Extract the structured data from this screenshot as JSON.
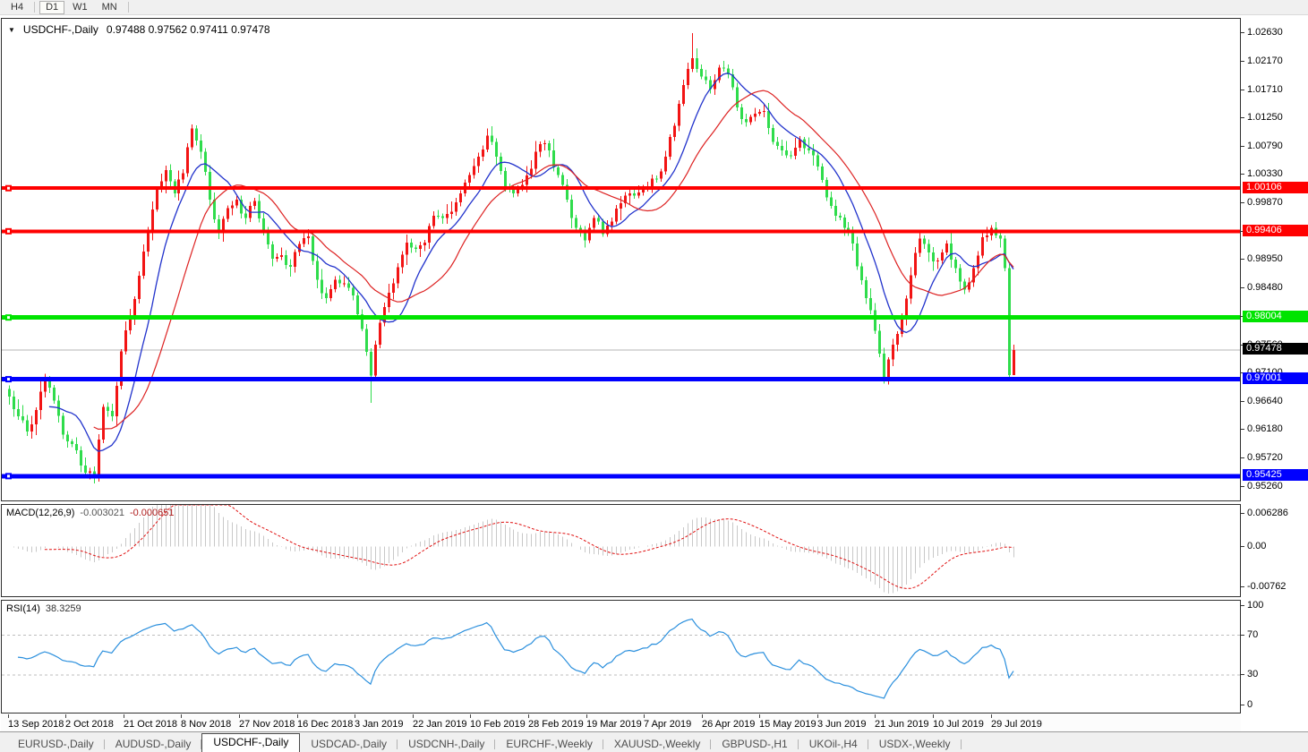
{
  "toolbar": {
    "periods": [
      {
        "label": "H4",
        "active": false
      },
      {
        "label": "D1",
        "active": true
      },
      {
        "label": "W1",
        "active": false
      },
      {
        "label": "MN",
        "active": false
      }
    ]
  },
  "chart": {
    "title": {
      "symbol": "USDCHF-,Daily",
      "ohlc": "0.97488 0.97562 0.97411 0.97478"
    }
  },
  "price_axis": {
    "ticks": [
      "1.02630",
      "1.02170",
      "1.01710",
      "1.01250",
      "1.00790",
      "1.00330",
      "0.99870",
      "0.99410",
      "0.98950",
      "0.98480",
      "0.98020",
      "0.97560",
      "0.97100",
      "0.96640",
      "0.96180",
      "0.95720",
      "0.95260"
    ],
    "badges": [
      {
        "text": "1.00106",
        "bg": "#ff0000",
        "price": 1.00106
      },
      {
        "text": "0.99406",
        "bg": "#ff0000",
        "price": 0.99406
      },
      {
        "text": "0.98004",
        "bg": "#00e400",
        "price": 0.98004
      },
      {
        "text": "0.97478",
        "bg": "#000000",
        "price": 0.97478
      },
      {
        "text": "0.97001",
        "bg": "#0000ff",
        "price": 0.97001
      },
      {
        "text": "0.95425",
        "bg": "#0000ff",
        "price": 0.95425
      }
    ]
  },
  "macd_panel": {
    "name": "MACD(12,26,9)",
    "value_main": "-0.003021",
    "value_signal": "-0.000651",
    "axis": [
      "0.006286",
      "0.00",
      "-0.00762"
    ]
  },
  "rsi_panel": {
    "name": "RSI(14)",
    "value": "38.3259",
    "axis": [
      "100",
      "70",
      "30",
      "0"
    ]
  },
  "date_axis": {
    "labels": [
      "13 Sep 2018",
      "2 Oct 2018",
      "21 Oct 2018",
      "8 Nov 2018",
      "27 Nov 2018",
      "16 Dec 2018",
      "3 Jan 2019",
      "22 Jan 2019",
      "10 Feb 2019",
      "28 Feb 2019",
      "19 Mar 2019",
      "7 Apr 2019",
      "26 Apr 2019",
      "15 May 2019",
      "3 Jun 2019",
      "21 Jun 2019",
      "10 Jul 2019",
      "29 Jul 2019"
    ]
  },
  "tabs": [
    {
      "label": "EURUSD-,Daily",
      "active": false
    },
    {
      "label": "AUDUSD-,Daily",
      "active": false
    },
    {
      "label": "USDCHF-,Daily",
      "active": true
    },
    {
      "label": "USDCAD-,Daily",
      "active": false
    },
    {
      "label": "USDCNH-,Daily",
      "active": false
    },
    {
      "label": "EURCHF-,Weekly",
      "active": false
    },
    {
      "label": "XAUUSD-,Weekly",
      "active": false
    },
    {
      "label": "GBPUSD-,H1",
      "active": false
    },
    {
      "label": "UKOil-,H4",
      "active": false
    },
    {
      "label": "USDX-,Weekly",
      "active": false
    }
  ],
  "chart_data": {
    "type": "candlestick",
    "symbol": "USDCHF",
    "timeframe": "Daily",
    "last_bar": {
      "open": 0.97488,
      "high": 0.97562,
      "low": 0.97411,
      "close": 0.97478
    },
    "visible_bars": 226,
    "ylim": [
      0.9503,
      1.0286
    ],
    "colors": {
      "bull": "#f21414",
      "bear": "#2fdc4c",
      "ma_fast": "#2233cc",
      "ma_slow": "#dd2222",
      "macd_hist": "#c8c8c8",
      "macd_signal": "#e01010",
      "rsi_line": "#2a8fdd",
      "level_dash": "#bdbdbd",
      "current_price_line": "#b4b4b4"
    },
    "hlines": [
      {
        "price": 1.00106,
        "color": "#ff0000",
        "thickness": 4
      },
      {
        "price": 0.99406,
        "color": "#ff0000",
        "thickness": 4
      },
      {
        "price": 0.98004,
        "color": "#00e400",
        "thickness": 5
      },
      {
        "price": 0.97001,
        "color": "#0000ff",
        "thickness": 5
      },
      {
        "price": 0.95425,
        "color": "#0000ff",
        "thickness": 5
      }
    ],
    "current_price": 0.97478,
    "close_anchors": [
      [
        0,
        0.9672
      ],
      [
        2,
        0.964
      ],
      [
        4,
        0.9615
      ],
      [
        6,
        0.965
      ],
      [
        8,
        0.97
      ],
      [
        10,
        0.9665
      ],
      [
        12,
        0.961
      ],
      [
        14,
        0.9595
      ],
      [
        16,
        0.956
      ],
      [
        19,
        0.9542
      ],
      [
        21,
        0.9655
      ],
      [
        23,
        0.964
      ],
      [
        25,
        0.9745
      ],
      [
        27,
        0.98
      ],
      [
        29,
        0.9868
      ],
      [
        31,
        0.994
      ],
      [
        33,
        1.0008
      ],
      [
        35,
        1.004
      ],
      [
        37,
        1.0002
      ],
      [
        39,
        1.0035
      ],
      [
        41,
        1.0108
      ],
      [
        43,
        1.007
      ],
      [
        45,
        0.9992
      ],
      [
        47,
        0.9938
      ],
      [
        49,
        0.9978
      ],
      [
        51,
        0.9992
      ],
      [
        53,
        0.9962
      ],
      [
        55,
        0.999
      ],
      [
        57,
        0.9942
      ],
      [
        59,
        0.9896
      ],
      [
        61,
        0.9902
      ],
      [
        63,
        0.9883
      ],
      [
        65,
        0.992
      ],
      [
        67,
        0.9932
      ],
      [
        69,
        0.9862
      ],
      [
        71,
        0.9832
      ],
      [
        73,
        0.9862
      ],
      [
        75,
        0.9856
      ],
      [
        77,
        0.9836
      ],
      [
        79,
        0.9782
      ],
      [
        81,
        0.9706
      ],
      [
        83,
        0.9792
      ],
      [
        85,
        0.9841
      ],
      [
        87,
        0.9882
      ],
      [
        89,
        0.9922
      ],
      [
        91,
        0.9912
      ],
      [
        93,
        0.9922
      ],
      [
        95,
        0.9966
      ],
      [
        97,
        0.9962
      ],
      [
        99,
        0.9972
      ],
      [
        101,
        1.0002
      ],
      [
        103,
        1.0032
      ],
      [
        105,
        1.0062
      ],
      [
        107,
        1.0096
      ],
      [
        109,
        1.0062
      ],
      [
        111,
        1.0012
      ],
      [
        113,
        1.0002
      ],
      [
        115,
        1.0016
      ],
      [
        117,
        1.0042
      ],
      [
        119,
        1.0082
      ],
      [
        121,
        1.0072
      ],
      [
        123,
        1.0032
      ],
      [
        125,
        0.9992
      ],
      [
        127,
        0.9946
      ],
      [
        129,
        0.9926
      ],
      [
        131,
        0.9962
      ],
      [
        133,
        0.9936
      ],
      [
        135,
        0.9956
      ],
      [
        137,
        0.9986
      ],
      [
        139,
        1.0002
      ],
      [
        141,
        1.0004
      ],
      [
        143,
        1.0012
      ],
      [
        145,
        1.0026
      ],
      [
        147,
        1.0062
      ],
      [
        149,
        1.0112
      ],
      [
        151,
        1.0178
      ],
      [
        153,
        1.0222
      ],
      [
        155,
        1.0192
      ],
      [
        157,
        1.0172
      ],
      [
        159,
        1.0207
      ],
      [
        161,
        1.0196
      ],
      [
        163,
        1.0142
      ],
      [
        165,
        1.0118
      ],
      [
        167,
        1.0132
      ],
      [
        169,
        1.0136
      ],
      [
        171,
        1.0086
      ],
      [
        173,
        1.0072
      ],
      [
        175,
        1.0063
      ],
      [
        177,
        1.009
      ],
      [
        179,
        1.0072
      ],
      [
        181,
        1.0046
      ],
      [
        183,
        0.9996
      ],
      [
        185,
        0.9966
      ],
      [
        187,
        0.9946
      ],
      [
        189,
        0.9921
      ],
      [
        191,
        0.9861
      ],
      [
        193,
        0.9812
      ],
      [
        195,
        0.9742
      ],
      [
        196,
        0.9702
      ],
      [
        198,
        0.9756
      ],
      [
        200,
        0.9801
      ],
      [
        202,
        0.9869
      ],
      [
        204,
        0.9929
      ],
      [
        206,
        0.9906
      ],
      [
        208,
        0.9893
      ],
      [
        210,
        0.9921
      ],
      [
        212,
        0.9881
      ],
      [
        214,
        0.9846
      ],
      [
        216,
        0.9881
      ],
      [
        218,
        0.9931
      ],
      [
        220,
        0.9946
      ],
      [
        222,
        0.9929
      ],
      [
        223,
        0.9881
      ],
      [
        224,
        0.9707
      ],
      [
        225,
        0.97478
      ]
    ],
    "wick_overrides": {
      "19": {
        "low": 0.9531
      },
      "81": {
        "low": 0.9662
      },
      "153": {
        "high": 1.0263
      },
      "196": {
        "low": 0.9693
      },
      "224": {
        "low": 0.9697
      },
      "225": {
        "high": 0.97562,
        "low": 0.97411
      }
    },
    "noise": {
      "seed": 9,
      "close_amp": 0.0008,
      "wick_amp": 0.0016
    },
    "moving_averages": [
      {
        "period": 10
      },
      {
        "period": 20
      }
    ],
    "indicators": {
      "macd": {
        "params": [
          12,
          26,
          9
        ],
        "range": [
          -0.0095,
          0.008
        ]
      },
      "rsi": {
        "period": 14,
        "range": [
          -8,
          105
        ],
        "levels": [
          70,
          30
        ]
      }
    }
  }
}
